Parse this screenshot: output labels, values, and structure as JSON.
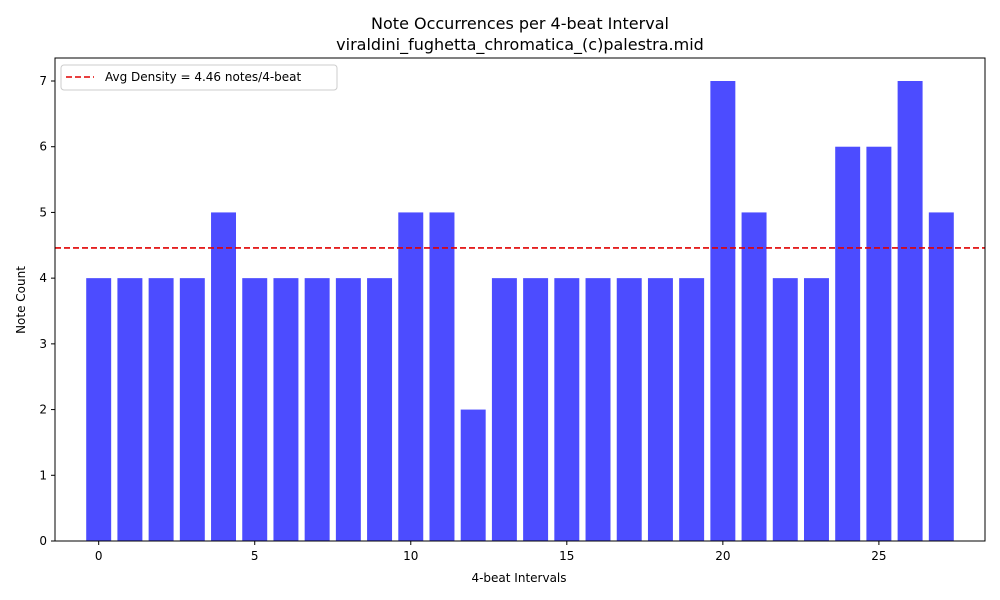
{
  "chart_data": {
    "type": "bar",
    "title": "Note Occurrences per 4-beat Interval",
    "subtitle": "viraldini_fughetta_chromatica_(c)palestra.mid",
    "xlabel": "4-beat Intervals",
    "ylabel": "Note Count",
    "x": [
      0,
      1,
      2,
      3,
      4,
      5,
      6,
      7,
      8,
      9,
      10,
      11,
      12,
      13,
      14,
      15,
      16,
      17,
      18,
      19,
      20,
      21,
      22,
      23,
      24,
      25,
      26,
      27
    ],
    "values": [
      4,
      4,
      4,
      4,
      5,
      4,
      4,
      4,
      4,
      4,
      5,
      5,
      2,
      4,
      4,
      4,
      4,
      4,
      4,
      4,
      7,
      5,
      4,
      4,
      6,
      6,
      7,
      5
    ],
    "xlim": [
      -1.4,
      28.4
    ],
    "ylim": [
      0,
      7.35
    ],
    "xticks": [
      0,
      5,
      10,
      15,
      20,
      25
    ],
    "yticks": [
      0,
      1,
      2,
      3,
      4,
      5,
      6,
      7
    ],
    "bar_color": "#4c4cff",
    "average": {
      "value": 4.46,
      "label": "Avg Density = 4.46 notes/4-beat",
      "color": "#e00000",
      "style": "dashed"
    },
    "legend_position": "top-left",
    "grid": false
  }
}
